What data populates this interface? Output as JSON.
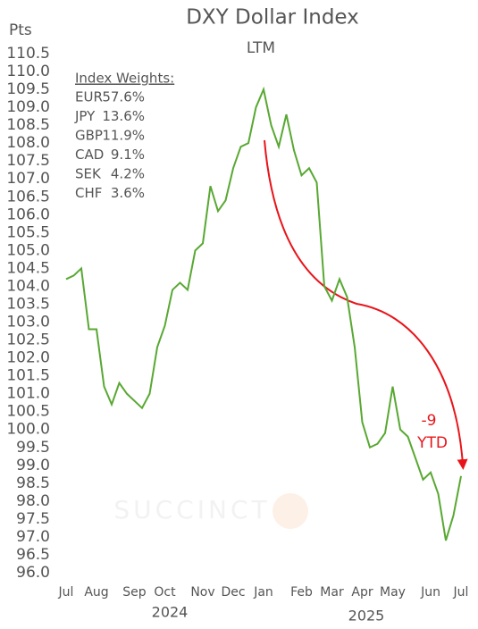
{
  "chart_data": {
    "type": "line",
    "title": "DXY Dollar Index",
    "subtitle": "LTM",
    "y_label": "Pts",
    "categories": [
      "Jul",
      null,
      null,
      null,
      "Aug",
      null,
      null,
      null,
      null,
      "Sep",
      null,
      null,
      null,
      "Oct",
      null,
      null,
      null,
      null,
      "Nov",
      null,
      null,
      null,
      "Dec",
      null,
      null,
      null,
      "Jan",
      null,
      null,
      null,
      null,
      "Feb",
      null,
      null,
      null,
      "Mar",
      null,
      null,
      null,
      "Apr",
      null,
      null,
      null,
      "May",
      null,
      null,
      null,
      null,
      "Jun",
      null,
      null,
      null,
      "Jul"
    ],
    "x_group_labels": [
      "2024",
      "2025"
    ],
    "series": [
      {
        "name": "DXY",
        "color": "#58a832",
        "values": [
          104.2,
          104.3,
          104.5,
          102.8,
          102.8,
          101.2,
          100.7,
          101.3,
          101.0,
          100.8,
          100.6,
          101.0,
          102.3,
          102.9,
          103.9,
          104.1,
          103.9,
          105.0,
          105.2,
          106.8,
          106.1,
          106.4,
          107.3,
          107.9,
          108.0,
          109.0,
          109.5,
          108.5,
          107.9,
          108.8,
          107.8,
          107.1,
          107.3,
          106.9,
          104.0,
          103.6,
          104.2,
          103.7,
          102.3,
          100.2,
          99.5,
          99.6,
          99.9,
          101.2,
          100.0,
          99.8,
          99.2,
          98.6,
          98.8,
          98.2,
          96.9,
          97.6,
          98.7
        ]
      }
    ],
    "ylim": [
      96,
      110.5
    ],
    "yticks": [
      {
        "value": 96,
        "label": "96.0"
      },
      96.5,
      {
        "value": 97,
        "label": "97.0"
      },
      97.5,
      {
        "value": 98,
        "label": "98.0"
      },
      98.5,
      {
        "value": 99,
        "label": "99.0"
      },
      99.5,
      {
        "value": 100,
        "label": "100.0"
      },
      100.5,
      {
        "value": 101,
        "label": "101.0"
      },
      101.5,
      {
        "value": 102,
        "label": "102.0"
      },
      102.5,
      {
        "value": 103,
        "label": "103.0"
      },
      103.5,
      {
        "value": 104,
        "label": "104.0"
      },
      104.5,
      {
        "value": 105,
        "label": "105.0"
      },
      105.5,
      {
        "value": 106,
        "label": "106.0"
      },
      106.5,
      {
        "value": 107,
        "label": "107.0"
      },
      107.5,
      {
        "value": 108,
        "label": "108.0"
      },
      108.5,
      {
        "value": 109,
        "label": "109.0"
      },
      109.5,
      {
        "value": 110,
        "label": "110.0"
      },
      110.5
    ],
    "grid": false,
    "weights": {
      "title": "Index Weights:",
      "rows": [
        [
          "EUR",
          "57.6%"
        ],
        [
          "JPY",
          "13.6%"
        ],
        [
          "GBP",
          "11.9%"
        ],
        [
          "CAD",
          "9.1%"
        ],
        [
          "SEK",
          "4.2%"
        ],
        [
          "CHF",
          "3.6%"
        ]
      ]
    },
    "annotation": [
      "-9",
      "YTD"
    ],
    "watermark": "SUCCINCT"
  }
}
